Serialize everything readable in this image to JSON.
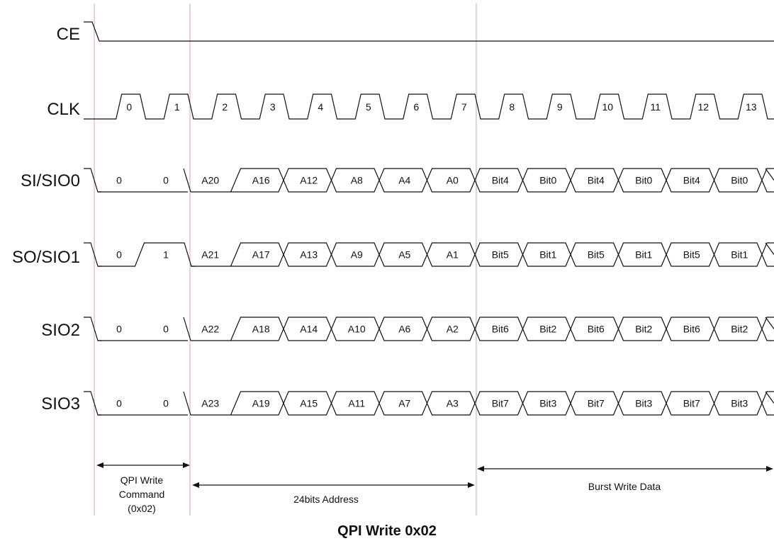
{
  "signals": {
    "ce": {
      "name": "CE"
    },
    "clk": {
      "name": "CLK",
      "cycles": [
        "0",
        "1",
        "2",
        "3",
        "4",
        "5",
        "6",
        "7",
        "8",
        "9",
        "10",
        "11",
        "12",
        "13"
      ]
    },
    "sio0": {
      "name": "SI/SIO0",
      "values": [
        "0",
        "0",
        "A20",
        "A16",
        "A12",
        "A8",
        "A4",
        "A0",
        "Bit4",
        "Bit0",
        "Bit4",
        "Bit0",
        "Bit4",
        "Bit0"
      ]
    },
    "sio1": {
      "name": "SO/SIO1",
      "values": [
        "0",
        "1",
        "A21",
        "A17",
        "A13",
        "A9",
        "A5",
        "A1",
        "Bit5",
        "Bit1",
        "Bit5",
        "Bit1",
        "Bit5",
        "Bit1"
      ]
    },
    "sio2": {
      "name": "SIO2",
      "values": [
        "0",
        "0",
        "A22",
        "A18",
        "A14",
        "A10",
        "A6",
        "A2",
        "Bit6",
        "Bit2",
        "Bit6",
        "Bit2",
        "Bit6",
        "Bit2"
      ]
    },
    "sio3": {
      "name": "SIO3",
      "values": [
        "0",
        "0",
        "A23",
        "A19",
        "A15",
        "A11",
        "A7",
        "A3",
        "Bit7",
        "Bit3",
        "Bit7",
        "Bit3",
        "Bit7",
        "Bit3"
      ]
    }
  },
  "annotations": {
    "command": {
      "line1": "QPI Write",
      "line2": "Command",
      "line3": "(0x02)"
    },
    "address": "24bits Address",
    "burst": "Burst Write Data"
  },
  "caption": "QPI Write 0x02"
}
